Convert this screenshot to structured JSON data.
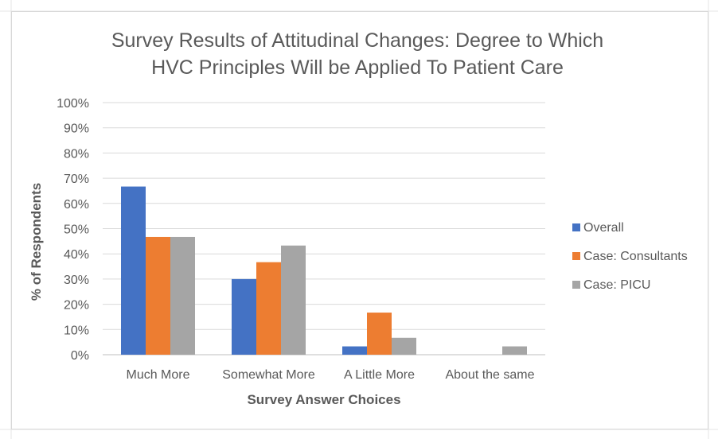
{
  "chart_data": {
    "type": "bar",
    "title": "Survey Results of Attitudinal Changes: Degree to Which HVC Principles Will be Applied To Patient Care",
    "title_lines": [
      "Survey Results of Attitudinal Changes: Degree to Which",
      "HVC Principles Will be Applied To Patient Care"
    ],
    "xlabel": "Survey Answer Choices",
    "ylabel": "% of Respondents",
    "categories": [
      "Much More",
      "Somewhat More",
      "A Little More",
      "About the same"
    ],
    "series": [
      {
        "name": "Overall",
        "color": "#4472c4",
        "values": [
          66.7,
          30.0,
          3.3,
          0
        ]
      },
      {
        "name": "Case: Consultants",
        "color": "#ed7d31",
        "values": [
          46.7,
          36.7,
          16.7,
          0
        ]
      },
      {
        "name": "Case: PICU",
        "color": "#a5a5a5",
        "values": [
          46.7,
          43.3,
          6.7,
          3.3
        ]
      }
    ],
    "ylim": [
      0,
      100
    ],
    "yticks": [
      0,
      10,
      20,
      30,
      40,
      50,
      60,
      70,
      80,
      90,
      100
    ],
    "ytick_labels": [
      "0%",
      "10%",
      "20%",
      "30%",
      "40%",
      "50%",
      "60%",
      "70%",
      "80%",
      "90%",
      "100%"
    ],
    "grid": true,
    "legend_position": "right"
  }
}
